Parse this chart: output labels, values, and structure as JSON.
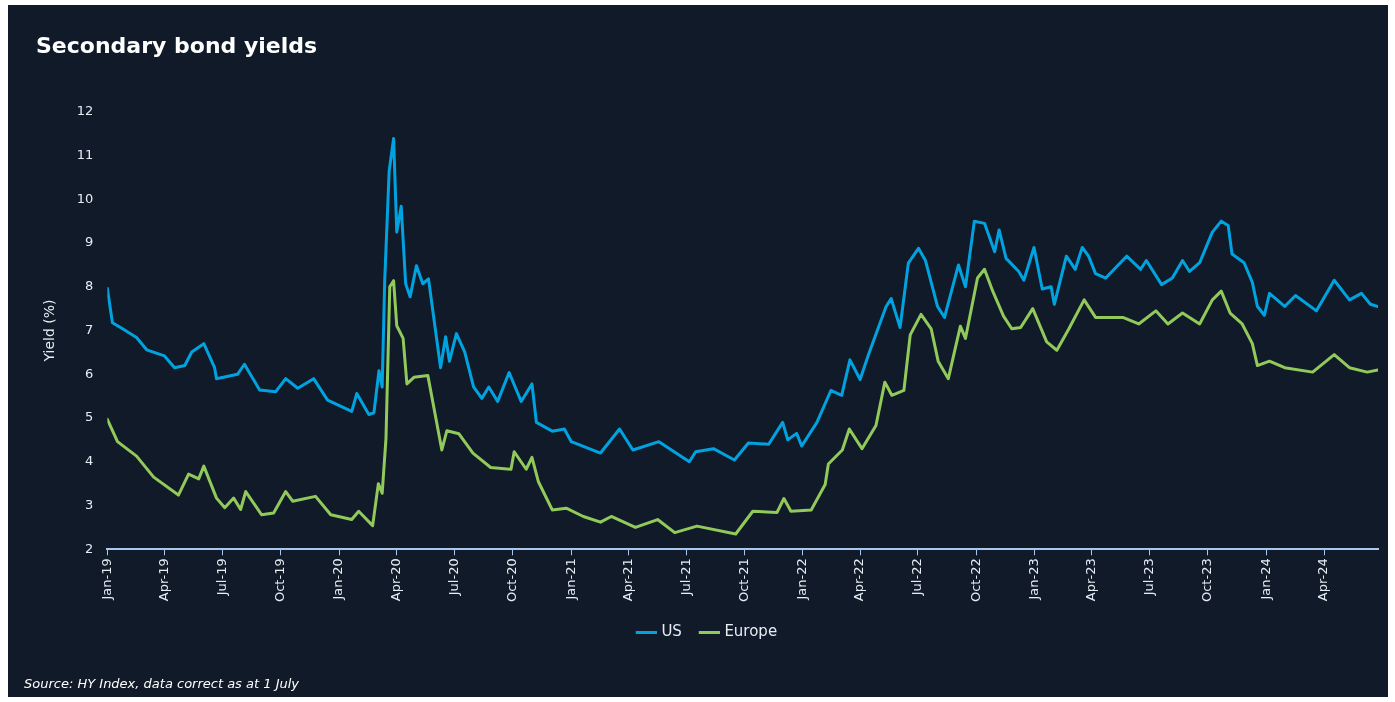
{
  "chart_data": {
    "type": "line",
    "title": "Secondary bond yields",
    "ylabel": "Yield (%)",
    "annotations": [
      "Source: HY Index, data correct as at 1 July"
    ],
    "xlim": [
      "2019-01-01",
      "2024-06-25"
    ],
    "xticks": [
      {
        "value": "2019-01",
        "label": "Jan-19"
      },
      {
        "value": "2019-04",
        "label": "Apr-19"
      },
      {
        "value": "2019-07",
        "label": "Jul-19"
      },
      {
        "value": "2019-10",
        "label": "Oct-19"
      },
      {
        "value": "2020-01",
        "label": "Jan-20"
      },
      {
        "value": "2020-04",
        "label": "Apr-20"
      },
      {
        "value": "2020-07",
        "label": "Jul-20"
      },
      {
        "value": "2020-10",
        "label": "Oct-20"
      },
      {
        "value": "2021-01",
        "label": "Jan-21"
      },
      {
        "value": "2021-04",
        "label": "Apr-21"
      },
      {
        "value": "2021-07",
        "label": "Jul-21"
      },
      {
        "value": "2021-10",
        "label": "Oct-21"
      },
      {
        "value": "2022-01",
        "label": "Jan-22"
      },
      {
        "value": "2022-04",
        "label": "Apr-22"
      },
      {
        "value": "2022-07",
        "label": "Jul-22"
      },
      {
        "value": "2022-10",
        "label": "Oct-22"
      },
      {
        "value": "2023-01",
        "label": "Jan-23"
      },
      {
        "value": "2023-04",
        "label": "Apr-23"
      },
      {
        "value": "2023-07",
        "label": "Jul-23"
      },
      {
        "value": "2023-10",
        "label": "Oct-23"
      },
      {
        "value": "2024-01",
        "label": "Jan-24"
      },
      {
        "value": "2024-04",
        "label": "Apr-24"
      }
    ],
    "ylim": [
      2,
      12
    ],
    "yticks": [
      2,
      3,
      4,
      5,
      6,
      7,
      8,
      9,
      10,
      11,
      12
    ],
    "grid": false,
    "legend": "bottom",
    "marker": "none",
    "line_style": "solid",
    "series": [
      {
        "name": "US",
        "color": "#00a3e0",
        "x": [
          "2019-01-01",
          "2019-01-09",
          "2019-01-25",
          "2019-02-16",
          "2019-03-04",
          "2019-04-01",
          "2019-04-17",
          "2019-05-03",
          "2019-05-14",
          "2019-06-02",
          "2019-06-19",
          "2019-06-22",
          "2019-07-25",
          "2019-08-05",
          "2019-08-29",
          "2019-09-23",
          "2019-10-09",
          "2019-10-28",
          "2019-11-22",
          "2019-12-14",
          "2020-01-21",
          "2020-01-29",
          "2020-02-17",
          "2020-02-25",
          "2020-03-04",
          "2020-03-09",
          "2020-03-13",
          "2020-03-20",
          "2020-03-27",
          "2020-04-01",
          "2020-04-08",
          "2020-04-15",
          "2020-04-22",
          "2020-05-02",
          "2020-05-12",
          "2020-05-21",
          "2020-06-09",
          "2020-06-17",
          "2020-06-23",
          "2020-07-04",
          "2020-07-17",
          "2020-07-31",
          "2020-08-13",
          "2020-08-24",
          "2020-09-07",
          "2020-09-25",
          "2020-10-14",
          "2020-10-31",
          "2020-11-07",
          "2020-12-02",
          "2020-12-21",
          "2021-01-01",
          "2021-02-16",
          "2021-03-18",
          "2021-04-08",
          "2021-05-19",
          "2021-07-06",
          "2021-07-16",
          "2021-08-13",
          "2021-09-15",
          "2021-10-07",
          "2021-11-08",
          "2021-11-30",
          "2021-12-08",
          "2021-12-22",
          "2021-12-30",
          "2022-01-23",
          "2022-02-14",
          "2022-03-03",
          "2022-03-16",
          "2022-04-01",
          "2022-04-15",
          "2022-05-12",
          "2022-05-20",
          "2022-06-03",
          "2022-06-16",
          "2022-07-02",
          "2022-07-13",
          "2022-08-01",
          "2022-08-12",
          "2022-09-03",
          "2022-09-14",
          "2022-09-28",
          "2022-10-14",
          "2022-10-30",
          "2022-11-06",
          "2022-11-17",
          "2022-12-07",
          "2022-12-15",
          "2022-12-31",
          "2023-01-13",
          "2023-01-27",
          "2023-02-01",
          "2023-02-20",
          "2023-03-06",
          "2023-03-17",
          "2023-03-27",
          "2023-04-07",
          "2023-04-23",
          "2023-05-26",
          "2023-06-17",
          "2023-06-26",
          "2023-07-20",
          "2023-08-06",
          "2023-08-22",
          "2023-09-02",
          "2023-09-18",
          "2023-10-08",
          "2023-10-22",
          "2023-11-02",
          "2023-11-08",
          "2023-11-27",
          "2023-12-10",
          "2023-12-18",
          "2023-12-29",
          "2024-01-06",
          "2024-01-30",
          "2024-02-16",
          "2024-03-20",
          "2024-04-17",
          "2024-05-11",
          "2024-05-30",
          "2024-06-13",
          "2024-06-25"
        ],
        "values": [
          7.96,
          7.18,
          7.04,
          6.84,
          6.56,
          6.42,
          6.15,
          6.2,
          6.51,
          6.7,
          6.15,
          5.9,
          6.0,
          6.23,
          5.64,
          5.6,
          5.9,
          5.68,
          5.9,
          5.41,
          5.15,
          5.56,
          5.08,
          5.12,
          6.08,
          5.71,
          8.14,
          10.64,
          11.39,
          9.25,
          9.84,
          8.07,
          7.77,
          8.48,
          8.07,
          8.18,
          6.15,
          6.86,
          6.3,
          6.93,
          6.51,
          5.71,
          5.45,
          5.71,
          5.38,
          6.04,
          5.38,
          5.78,
          4.9,
          4.7,
          4.75,
          4.46,
          4.2,
          4.75,
          4.27,
          4.46,
          4.0,
          4.23,
          4.3,
          4.04,
          4.43,
          4.4,
          4.9,
          4.5,
          4.65,
          4.36,
          4.9,
          5.63,
          5.52,
          6.33,
          5.88,
          6.48,
          7.55,
          7.73,
          7.07,
          8.54,
          8.88,
          8.6,
          7.55,
          7.3,
          8.5,
          8.0,
          9.5,
          9.45,
          8.8,
          9.3,
          8.65,
          8.35,
          8.15,
          8.9,
          7.95,
          8.0,
          7.6,
          8.7,
          8.4,
          8.9,
          8.7,
          8.3,
          8.2,
          8.7,
          8.4,
          8.6,
          8.05,
          8.2,
          8.6,
          8.35,
          8.55,
          9.25,
          9.5,
          9.4,
          8.75,
          8.55,
          8.1,
          7.55,
          7.35,
          7.85,
          7.55,
          7.8,
          7.45,
          8.15,
          7.7,
          7.85,
          7.6,
          7.55
        ]
      },
      {
        "name": "Europe",
        "color": "#92c95b",
        "x": [
          "2019-01-01",
          "2019-01-17",
          "2019-02-16",
          "2019-03-15",
          "2019-04-23",
          "2019-05-09",
          "2019-05-25",
          "2019-06-02",
          "2019-06-22",
          "2019-07-05",
          "2019-07-19",
          "2019-07-30",
          "2019-08-07",
          "2019-09-01",
          "2019-09-20",
          "2019-10-09",
          "2019-10-20",
          "2019-11-25",
          "2019-12-19",
          "2020-01-21",
          "2020-02-01",
          "2020-02-23",
          "2020-03-03",
          "2020-03-09",
          "2020-03-15",
          "2020-03-21",
          "2020-03-27",
          "2020-04-01",
          "2020-04-11",
          "2020-04-17",
          "2020-04-28",
          "2020-05-20",
          "2020-05-31",
          "2020-06-11",
          "2020-06-19",
          "2020-07-08",
          "2020-07-30",
          "2020-08-27",
          "2020-09-28",
          "2020-10-03",
          "2020-10-22",
          "2020-10-31",
          "2020-11-10",
          "2020-12-02",
          "2020-12-24",
          "2021-01-20",
          "2021-02-16",
          "2021-03-05",
          "2021-04-12",
          "2021-05-17",
          "2021-06-13",
          "2021-07-18",
          "2021-09-17",
          "2021-10-14",
          "2021-11-21",
          "2021-12-02",
          "2021-12-13",
          "2022-01-14",
          "2022-02-05",
          "2022-02-10",
          "2022-03-04",
          "2022-03-15",
          "2022-04-04",
          "2022-04-26",
          "2022-05-10",
          "2022-05-21",
          "2022-06-09",
          "2022-06-19",
          "2022-07-06",
          "2022-07-22",
          "2022-08-02",
          "2022-08-18",
          "2022-09-06",
          "2022-09-14",
          "2022-10-03",
          "2022-10-14",
          "2022-10-27",
          "2022-11-13",
          "2022-11-26",
          "2022-12-10",
          "2022-12-29",
          "2023-01-20",
          "2023-02-05",
          "2023-02-24",
          "2023-03-20",
          "2023-04-07",
          "2023-05-20",
          "2023-06-14",
          "2023-07-11",
          "2023-07-30",
          "2023-08-22",
          "2023-09-18",
          "2023-10-08",
          "2023-10-22",
          "2023-11-05",
          "2023-11-24",
          "2023-12-10",
          "2023-12-18",
          "2024-01-06",
          "2024-01-30",
          "2024-03-14",
          "2024-04-17",
          "2024-05-11",
          "2024-06-08",
          "2024-06-25"
        ],
        "values": [
          4.97,
          4.46,
          4.13,
          3.65,
          3.24,
          3.72,
          3.61,
          3.9,
          3.17,
          2.95,
          3.17,
          2.91,
          3.32,
          2.79,
          2.83,
          3.32,
          3.1,
          3.21,
          2.79,
          2.68,
          2.87,
          2.54,
          3.5,
          3.28,
          4.53,
          8.0,
          8.14,
          7.11,
          6.82,
          5.78,
          5.93,
          5.97,
          5.12,
          4.27,
          4.71,
          4.64,
          4.2,
          3.87,
          3.83,
          4.23,
          3.83,
          4.1,
          3.55,
          2.9,
          2.94,
          2.75,
          2.62,
          2.75,
          2.5,
          2.68,
          2.38,
          2.53,
          2.35,
          2.87,
          2.84,
          3.16,
          2.87,
          2.9,
          3.48,
          3.95,
          4.27,
          4.75,
          4.3,
          4.83,
          5.82,
          5.52,
          5.63,
          6.9,
          7.37,
          7.04,
          6.3,
          5.9,
          7.1,
          6.82,
          8.2,
          8.4,
          7.9,
          7.33,
          7.04,
          7.07,
          7.5,
          6.74,
          6.55,
          7.04,
          7.7,
          7.3,
          7.3,
          7.15,
          7.45,
          7.15,
          7.4,
          7.15,
          7.7,
          7.9,
          7.4,
          7.15,
          6.7,
          6.2,
          6.3,
          6.15,
          6.05,
          6.45,
          6.15,
          6.05,
          6.1
        ]
      }
    ]
  }
}
